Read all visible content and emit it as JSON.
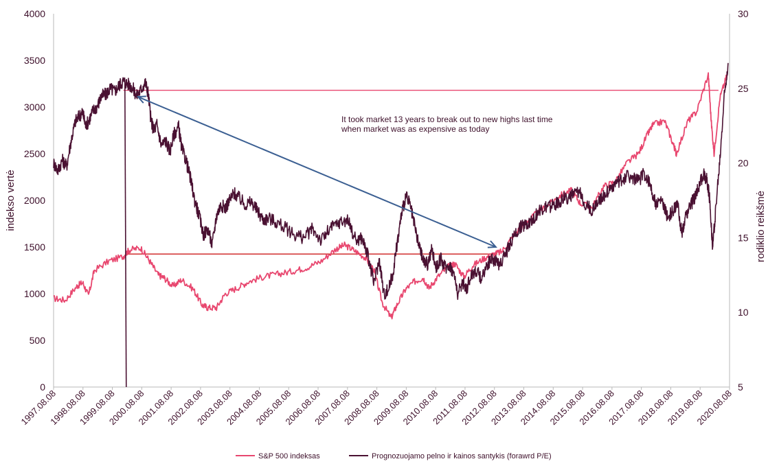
{
  "chart_data": {
    "type": "line",
    "x_tick_labels": [
      "1997.08.08",
      "1998.08.08",
      "1999.08.08",
      "2000.08.08",
      "2001.08.08",
      "2002.08.08",
      "2003.08.08",
      "2004.08.08",
      "2005.08.08",
      "2006.08.08",
      "2007.08.08",
      "2008.08.08",
      "2009.08.08",
      "2010.08.08",
      "2011.08.08",
      "2012.08.08",
      "2013.08.08",
      "2014.08.08",
      "2015.08.08",
      "2016.08.08",
      "2017.08.08",
      "2018.08.08",
      "2019.08.08",
      "2020.08.08"
    ],
    "y_left": {
      "label": "indekso vertė",
      "range": [
        0,
        4000
      ],
      "ticks": [
        "0",
        "500",
        "1000",
        "1500",
        "2000",
        "2500",
        "3000",
        "3500",
        "4000"
      ]
    },
    "y_right": {
      "label": "rodiklio reikšmė",
      "range": [
        5,
        30
      ],
      "ticks": [
        "5",
        "10",
        "15",
        "20",
        "25",
        "30"
      ]
    },
    "series": [
      {
        "name": "S&P 500 indeksas",
        "axis": "left",
        "color": "#e8476f",
        "x": [
          1997.6,
          1998.0,
          1998.4,
          1998.6,
          1998.8,
          1999.0,
          1999.5,
          2000.0,
          2000.2,
          2000.6,
          2000.9,
          2001.2,
          2001.4,
          2001.7,
          2002.0,
          2002.4,
          2002.7,
          2002.9,
          2003.2,
          2003.5,
          2003.9,
          2004.3,
          2004.8,
          2005.3,
          2005.8,
          2006.3,
          2006.8,
          2007.3,
          2007.6,
          2007.9,
          2008.3,
          2008.6,
          2008.9,
          2009.2,
          2009.4,
          2009.7,
          2010.0,
          2010.3,
          2010.5,
          2010.8,
          2011.2,
          2011.4,
          2011.7,
          2012.0,
          2012.4,
          2012.7,
          2013.0,
          2013.4,
          2013.8,
          2014.2,
          2014.6,
          2015.0,
          2015.4,
          2015.7,
          2016.1,
          2016.5,
          2016.9,
          2017.3,
          2017.7,
          2018.0,
          2018.2,
          2018.6,
          2018.9,
          2019.0,
          2019.4,
          2019.7,
          2020.1,
          2020.2,
          2020.3,
          2020.5,
          2020.75
        ],
        "y": [
          950,
          930,
          1080,
          1120,
          980,
          1250,
          1350,
          1400,
          1470,
          1490,
          1350,
          1200,
          1170,
          1080,
          1150,
          1050,
          880,
          850,
          850,
          1000,
          1060,
          1130,
          1180,
          1210,
          1240,
          1280,
          1350,
          1480,
          1520,
          1470,
          1390,
          1260,
          900,
          740,
          880,
          1050,
          1130,
          1170,
          1060,
          1180,
          1300,
          1320,
          1180,
          1300,
          1380,
          1420,
          1450,
          1620,
          1760,
          1860,
          1950,
          2050,
          2110,
          1970,
          1920,
          2150,
          2200,
          2400,
          2500,
          2700,
          2810,
          2850,
          2600,
          2500,
          2850,
          2950,
          3350,
          2850,
          2500,
          3100,
          3350
        ]
      },
      {
        "name": "Prognozuojamo pelno ir kainos santykis (forawrd P/E)",
        "axis": "right",
        "color": "#4a1132",
        "x": [
          1997.6,
          1997.75,
          1997.9,
          1998.05,
          1998.2,
          1998.35,
          1998.5,
          1998.6,
          1998.7,
          1998.8,
          1998.95,
          1999.1,
          1999.25,
          1999.4,
          1999.55,
          1999.7,
          1999.85,
          2000.0,
          2000.15,
          2000.3,
          2000.45,
          2000.6,
          2000.75,
          2000.85,
          2000.95,
          2001.05,
          2001.15,
          2001.3,
          2001.45,
          2001.6,
          2001.75,
          2001.9,
          2002.0,
          2002.15,
          2002.3,
          2002.45,
          2002.6,
          2002.75,
          2002.9,
          2003.05,
          2003.2,
          2003.35,
          2003.5,
          2003.65,
          2003.8,
          2004.0,
          2004.2,
          2004.4,
          2004.6,
          2004.8,
          2005.0,
          2005.3,
          2005.6,
          2005.9,
          2006.2,
          2006.5,
          2006.8,
          2007.1,
          2007.4,
          2007.7,
          2008.0,
          2008.2,
          2008.4,
          2008.6,
          2008.8,
          2008.95,
          2009.1,
          2009.25,
          2009.4,
          2009.55,
          2009.7,
          2009.85,
          2010.0,
          2010.15,
          2010.3,
          2010.45,
          2010.6,
          2010.75,
          2010.9,
          2011.05,
          2011.2,
          2011.35,
          2011.5,
          2011.65,
          2011.8,
          2011.95,
          2012.1,
          2012.3,
          2012.5,
          2012.7,
          2012.9,
          2013.1,
          2013.3,
          2013.5,
          2013.7,
          2013.9,
          2014.1,
          2014.3,
          2014.5,
          2014.7,
          2014.9,
          2015.1,
          2015.3,
          2015.5,
          2015.7,
          2015.9,
          2016.1,
          2016.3,
          2016.5,
          2016.7,
          2016.9,
          2017.1,
          2017.3,
          2017.5,
          2017.7,
          2017.9,
          2018.1,
          2018.3,
          2018.5,
          2018.7,
          2018.9,
          2019.05,
          2019.2,
          2019.35,
          2019.5,
          2019.65,
          2019.8,
          2019.95,
          2020.05,
          2020.15,
          2020.25,
          2020.35,
          2020.5,
          2020.65,
          2020.78
        ],
        "y": [
          20,
          19.5,
          20.2,
          19.8,
          21.5,
          22.8,
          23.2,
          23.4,
          22.5,
          22.8,
          23.5,
          23.8,
          24.5,
          24.6,
          25.0,
          24.8,
          25.2,
          25.5,
          25.3,
          25.1,
          24.5,
          24.9,
          25.4,
          24.7,
          22.8,
          22.2,
          22.6,
          21.2,
          21.5,
          20.8,
          22.0,
          22.4,
          21.0,
          20.2,
          19.0,
          17.5,
          16.5,
          15.2,
          15.6,
          14.5,
          16.5,
          17.2,
          17.0,
          17.5,
          18.0,
          17.6,
          17.2,
          17.4,
          16.8,
          16.2,
          16.3,
          16.0,
          15.6,
          15.2,
          15.0,
          15.6,
          14.8,
          15.6,
          16.0,
          16.2,
          14.8,
          15.0,
          13.8,
          12.0,
          13.5,
          11.2,
          11.5,
          12.5,
          14.5,
          16.5,
          17.8,
          17.2,
          15.8,
          14.5,
          13.5,
          13.2,
          14.2,
          13.0,
          13.6,
          13.0,
          13.2,
          12.6,
          11.2,
          12.0,
          11.6,
          12.5,
          12.8,
          12.3,
          13.2,
          13.6,
          13.2,
          13.8,
          14.6,
          15.4,
          15.8,
          16.0,
          16.3,
          16.8,
          17.0,
          17.1,
          17.3,
          17.6,
          17.7,
          17.9,
          18.0,
          17.2,
          16.8,
          17.5,
          17.8,
          18.2,
          18.6,
          18.8,
          19.2,
          19.0,
          18.8,
          19.3,
          18.6,
          17.2,
          17.5,
          16.4,
          16.8,
          17.2,
          15.2,
          16.6,
          17.2,
          17.8,
          18.6,
          19.2,
          18.9,
          17.6,
          14.3,
          16.8,
          20.2,
          24.5,
          26.7
        ]
      }
    ],
    "reference_lines": [
      {
        "color": "#e8476f",
        "axis": "left",
        "x_start": 2000.0,
        "x_end": 2020.45,
        "y": 3180
      },
      {
        "color": "#cc1a1a",
        "axis": "left",
        "x_start": 2000.1,
        "x_end": 2012.85,
        "y": 1425
      }
    ],
    "arrow": {
      "color": "#3b5f92",
      "from": {
        "x": 2000.5,
        "y": 3110
      },
      "to": {
        "x": 2012.8,
        "y": 1500
      }
    },
    "annotation": [
      "It took market 13 years to break out to new highs last time",
      "when market was as expensive as today"
    ],
    "legend": {
      "placement": "bottom",
      "items": [
        "S&P 500 indeksas",
        "Prognozuojamo pelno ir kainos santykis (forawrd P/E)"
      ]
    }
  }
}
